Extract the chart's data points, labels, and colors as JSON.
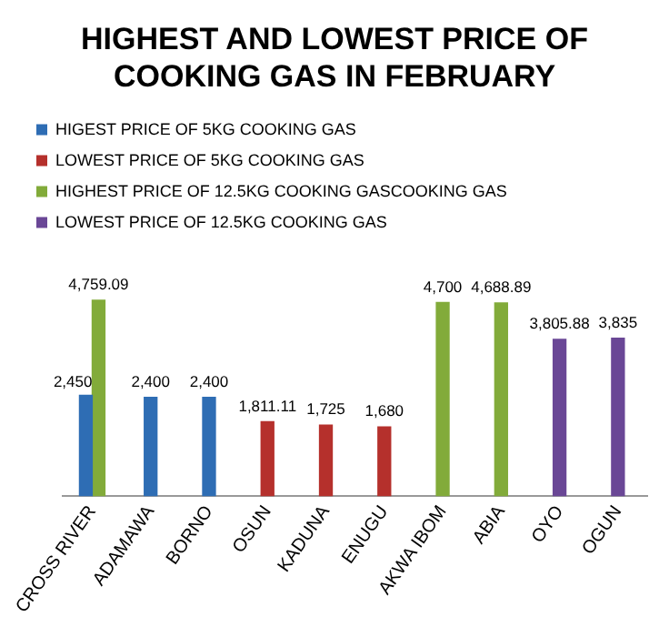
{
  "chart_data": {
    "type": "bar",
    "title": "HIGHEST AND LOWEST PRICE OF COOKING GAS IN FEBRUARY",
    "categories": [
      "CROSS RIVER",
      "ADAMAWA",
      "BORNO",
      "OSUN",
      "KADUNA",
      "ENUGU",
      "AKWA IBOM",
      "ABIA",
      "OYO",
      "OGUN"
    ],
    "series": [
      {
        "name": "HIGEST PRICE OF 5KG COOKING GAS",
        "color": "#2e6db4",
        "values": [
          2450,
          2400,
          2400,
          null,
          null,
          null,
          null,
          null,
          null,
          null
        ],
        "value_labels": [
          "2,450",
          "2,400",
          "2,400",
          null,
          null,
          null,
          null,
          null,
          null,
          null
        ]
      },
      {
        "name": "LOWEST PRICE OF 5KG COOKING GAS",
        "color": "#b5302c",
        "values": [
          null,
          null,
          null,
          1811.11,
          1725,
          1680,
          null,
          null,
          null,
          null
        ],
        "value_labels": [
          null,
          null,
          null,
          "1,811.11",
          "1,725",
          "1,680",
          null,
          null,
          null,
          null
        ]
      },
      {
        "name": "HIGHEST PRICE OF 12.5KG COOKING GASCOOKING GAS",
        "color": "#82ab3a",
        "values": [
          4759.09,
          null,
          null,
          null,
          null,
          null,
          4700,
          4688.89,
          null,
          null
        ],
        "value_labels": [
          "4,759.09",
          null,
          null,
          null,
          null,
          null,
          "4,700",
          "4,688.89",
          null,
          null
        ]
      },
      {
        "name": "LOWEST PRICE OF 12.5KG COOKING GAS",
        "color": "#6a4796",
        "values": [
          null,
          null,
          null,
          null,
          null,
          null,
          null,
          null,
          3805.88,
          3835
        ],
        "value_labels": [
          null,
          null,
          null,
          null,
          null,
          null,
          null,
          null,
          "3,805.88",
          "3,835"
        ]
      }
    ],
    "legend": "top",
    "grid": false,
    "tick_labels": "x"
  }
}
